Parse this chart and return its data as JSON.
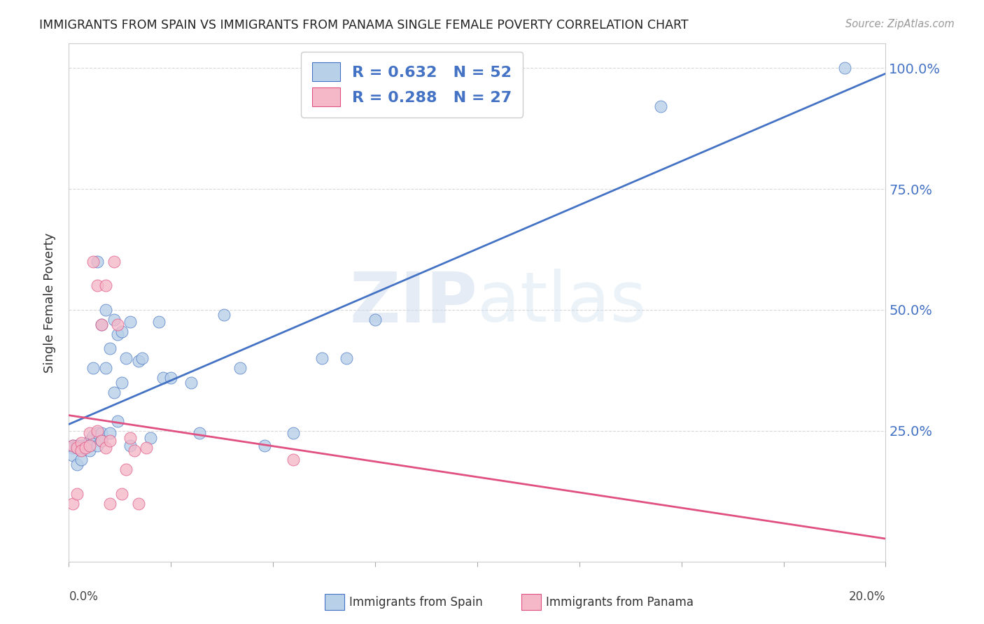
{
  "title": "IMMIGRANTS FROM SPAIN VS IMMIGRANTS FROM PANAMA SINGLE FEMALE POVERTY CORRELATION CHART",
  "source": "Source: ZipAtlas.com",
  "ylabel": "Single Female Poverty",
  "watermark": "ZIPatlas",
  "spain_color": "#b8d0e8",
  "panama_color": "#f4b8c8",
  "spain_line_color": "#4472c4",
  "panama_line_color": "#e05080",
  "spain_R": "0.632",
  "spain_N": "52",
  "panama_R": "0.288",
  "panama_N": "27",
  "right_ytick_vals": [
    0.25,
    0.5,
    0.75,
    1.0
  ],
  "right_yticklabels": [
    "25.0%",
    "50.0%",
    "75.0%",
    "100.0%"
  ],
  "background_color": "#ffffff",
  "grid_color": "#d8d8d8",
  "xlim": [
    0.0,
    0.2
  ],
  "ylim": [
    -0.02,
    1.05
  ],
  "spain_x": [
    0.001,
    0.001,
    0.001,
    0.002,
    0.002,
    0.002,
    0.003,
    0.003,
    0.003,
    0.004,
    0.004,
    0.005,
    0.005,
    0.005,
    0.006,
    0.006,
    0.007,
    0.007,
    0.007,
    0.008,
    0.008,
    0.008,
    0.009,
    0.009,
    0.01,
    0.01,
    0.011,
    0.011,
    0.012,
    0.012,
    0.013,
    0.013,
    0.014,
    0.015,
    0.015,
    0.017,
    0.018,
    0.02,
    0.022,
    0.023,
    0.025,
    0.03,
    0.032,
    0.038,
    0.042,
    0.048,
    0.055,
    0.062,
    0.068,
    0.075,
    0.145,
    0.19
  ],
  "spain_y": [
    0.22,
    0.215,
    0.2,
    0.215,
    0.22,
    0.18,
    0.22,
    0.21,
    0.19,
    0.22,
    0.215,
    0.23,
    0.22,
    0.21,
    0.24,
    0.38,
    0.245,
    0.22,
    0.6,
    0.245,
    0.23,
    0.47,
    0.38,
    0.5,
    0.245,
    0.42,
    0.33,
    0.48,
    0.45,
    0.27,
    0.455,
    0.35,
    0.4,
    0.475,
    0.22,
    0.395,
    0.4,
    0.235,
    0.475,
    0.36,
    0.36,
    0.35,
    0.245,
    0.49,
    0.38,
    0.22,
    0.245,
    0.4,
    0.4,
    0.48,
    0.92,
    1.0
  ],
  "panama_x": [
    0.001,
    0.001,
    0.002,
    0.002,
    0.003,
    0.003,
    0.004,
    0.005,
    0.005,
    0.006,
    0.007,
    0.007,
    0.008,
    0.008,
    0.009,
    0.009,
    0.01,
    0.01,
    0.011,
    0.012,
    0.013,
    0.014,
    0.015,
    0.016,
    0.017,
    0.019,
    0.055
  ],
  "panama_y": [
    0.22,
    0.1,
    0.215,
    0.12,
    0.225,
    0.21,
    0.215,
    0.245,
    0.22,
    0.6,
    0.55,
    0.25,
    0.47,
    0.23,
    0.55,
    0.215,
    0.23,
    0.1,
    0.6,
    0.47,
    0.12,
    0.17,
    0.235,
    0.21,
    0.1,
    0.215,
    0.19
  ]
}
